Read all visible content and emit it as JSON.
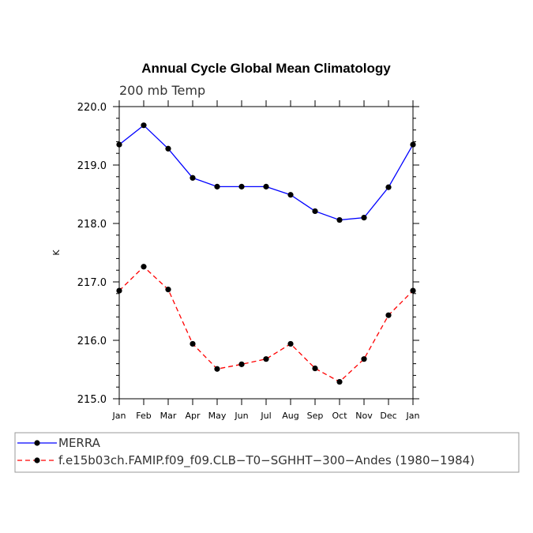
{
  "chart_data": {
    "type": "line",
    "title": "Annual Cycle Global Mean Climatology",
    "subtitle": "200 mb Temp",
    "xlabel": "",
    "ylabel": "K",
    "ylim": [
      215.0,
      220.0
    ],
    "yticks": [
      "215.0",
      "216.0",
      "217.0",
      "218.0",
      "219.0",
      "220.0"
    ],
    "categories": [
      "Jan",
      "Feb",
      "Mar",
      "Apr",
      "May",
      "Jun",
      "Jul",
      "Aug",
      "Sep",
      "Oct",
      "Nov",
      "Dec",
      "Jan"
    ],
    "series": [
      {
        "name": "MERRA",
        "color": "#0000ff",
        "style": "solid",
        "values": [
          219.35,
          219.68,
          219.28,
          218.78,
          218.63,
          218.63,
          218.63,
          218.49,
          218.21,
          218.06,
          218.1,
          218.62,
          219.35
        ]
      },
      {
        "name": "f.e15b03ch.FAMIP.f09_f09.CLB−T0−SGHHT−300−Andes (1980−1984)",
        "color": "#ff0000",
        "style": "dashed",
        "values": [
          216.85,
          217.26,
          216.87,
          215.94,
          215.51,
          215.59,
          215.68,
          215.94,
          215.52,
          215.29,
          215.68,
          216.43,
          216.85
        ]
      }
    ],
    "legend": "bottom"
  }
}
